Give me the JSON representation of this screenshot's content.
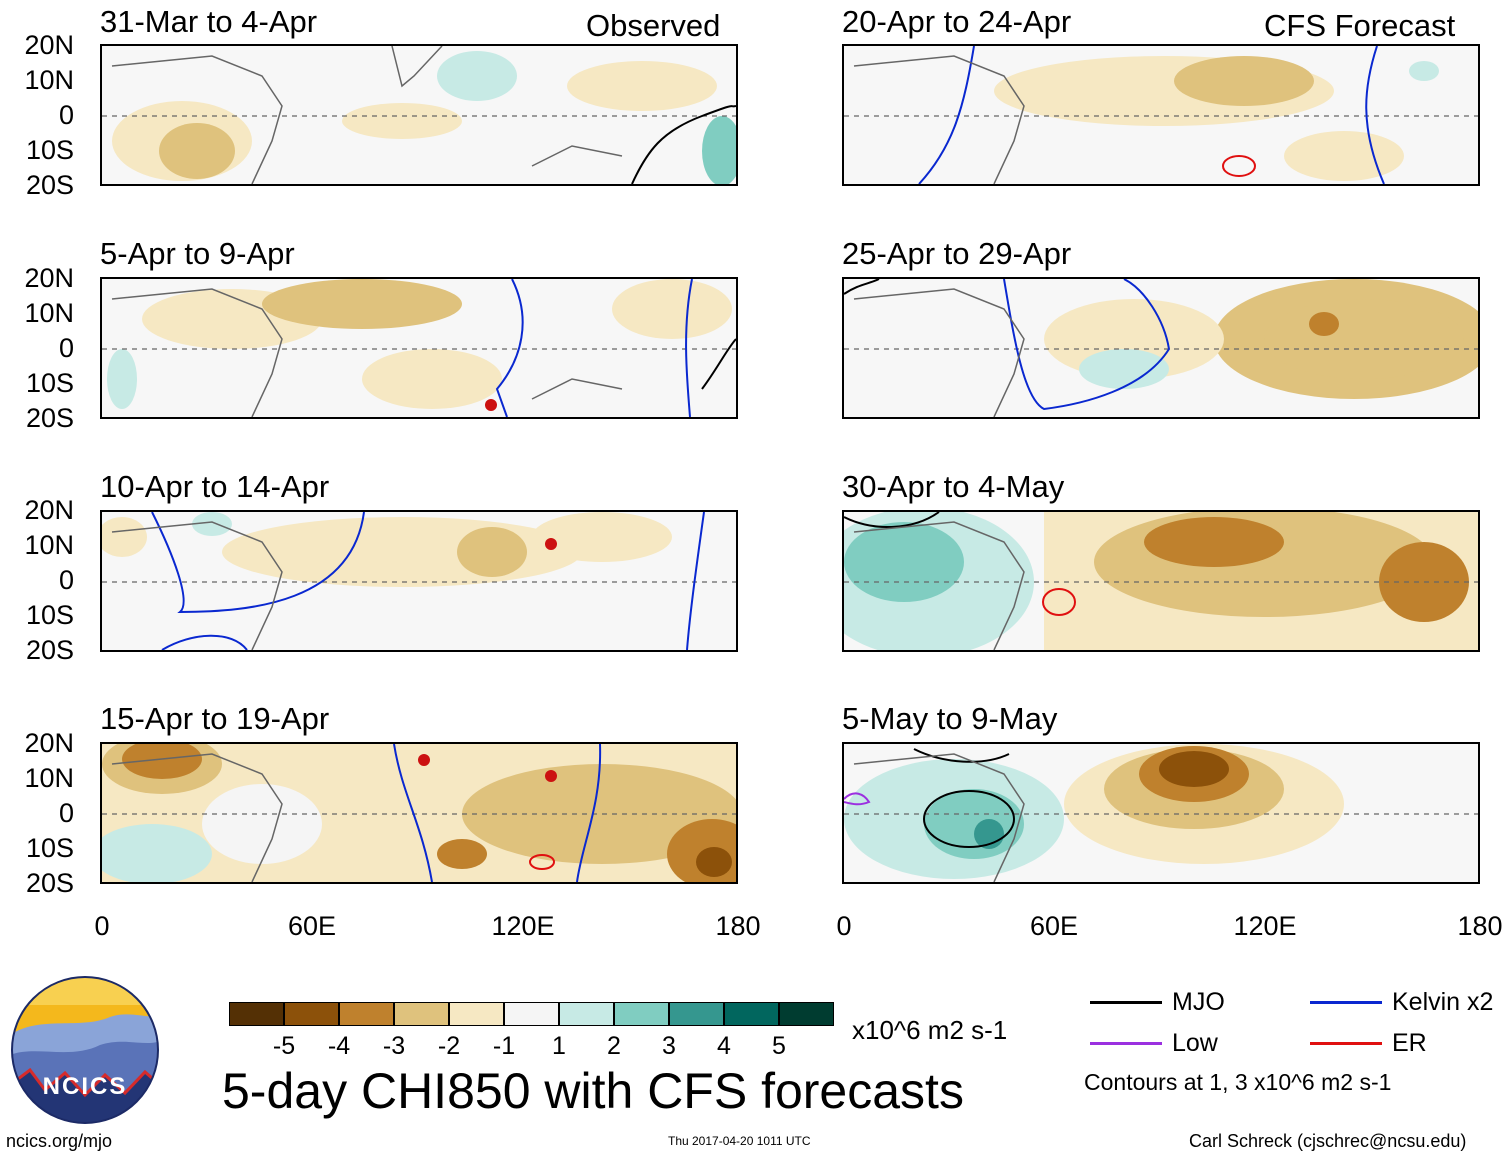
{
  "tags": {
    "observed": "Observed",
    "forecast": "CFS Forecast"
  },
  "panels": [
    {
      "title": "31-Mar to 4-Apr"
    },
    {
      "title": "5-Apr to 9-Apr"
    },
    {
      "title": "10-Apr to 14-Apr"
    },
    {
      "title": "15-Apr to 19-Apr"
    },
    {
      "title": "20-Apr to 24-Apr"
    },
    {
      "title": "25-Apr to 29-Apr"
    },
    {
      "title": "30-Apr to 4-May"
    },
    {
      "title": "5-May to 9-May"
    }
  ],
  "lat_labels": [
    "20N",
    "10N",
    "0",
    "10S",
    "20S"
  ],
  "lon_labels": [
    "0",
    "60E",
    "120E",
    "180"
  ],
  "colorbar": {
    "colors": [
      "#543005",
      "#8c510a",
      "#bf812d",
      "#dfc27d",
      "#f6e8c3",
      "#f5f5f5",
      "#c7eae5",
      "#80cdc1",
      "#35978f",
      "#01665e",
      "#003c30"
    ],
    "labels": [
      "-5",
      "-4",
      "-3",
      "-2",
      "-1",
      "1",
      "2",
      "3",
      "4",
      "5"
    ],
    "units": "x10^6 m2 s-1"
  },
  "legend": {
    "mjo": "MJO",
    "kelvin": "Kelvin x2",
    "low": "Low",
    "er": "ER",
    "mjo_color": "#000000",
    "kelvin_color": "#0a28d0",
    "low_color": "#9b30e0",
    "er_color": "#e01010",
    "contours_note": "Contours at 1, 3 x10^6 m2 s-1"
  },
  "main_title": "5-day CHI850 with CFS forecasts",
  "logo_text": "NCICS",
  "footer": {
    "url": "ncics.org/mjo",
    "timestamp": "Thu 2017-04-20 1011 UTC",
    "credit": "Carl Schreck (cjschrec@ncsu.edu)"
  }
}
